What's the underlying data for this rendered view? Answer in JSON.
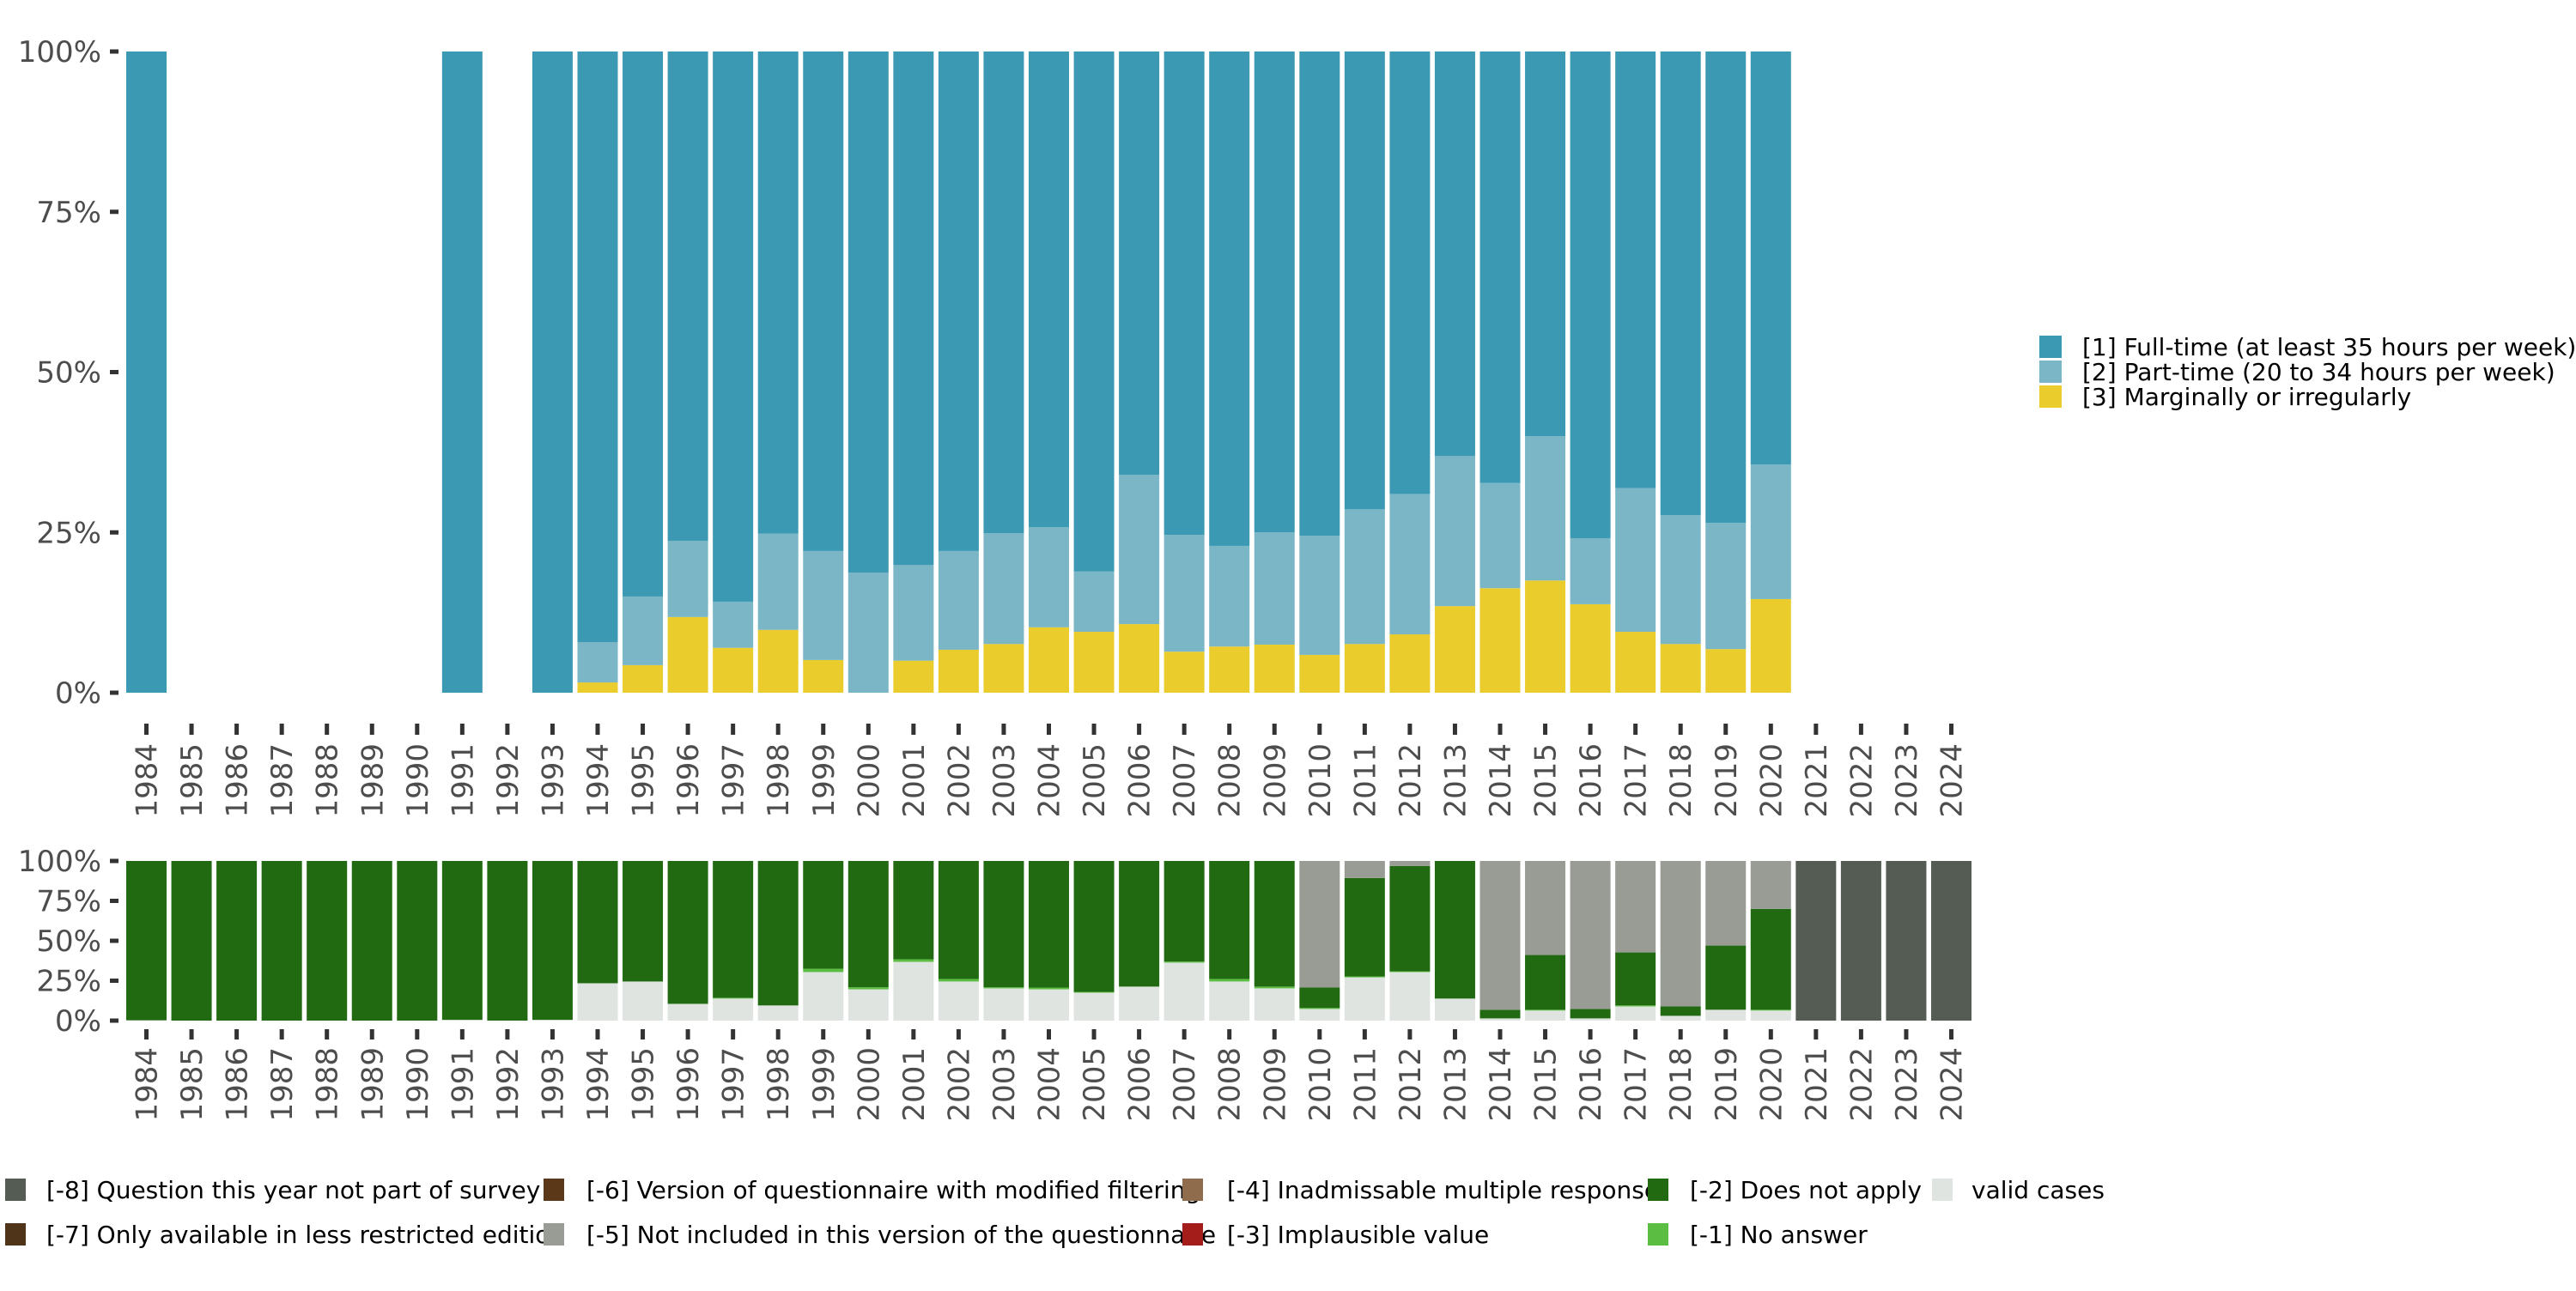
{
  "chart_data": [
    {
      "type": "bar",
      "stacked": true,
      "title": "",
      "xlabel": "",
      "ylabel": "",
      "ylim": [
        0,
        100
      ],
      "yticks": [
        "0%",
        "25%",
        "50%",
        "75%",
        "100%"
      ],
      "grid": false,
      "legend_position": "right",
      "categories": [
        "1984",
        "1985",
        "1986",
        "1987",
        "1988",
        "1989",
        "1990",
        "1991",
        "1992",
        "1993",
        "1994",
        "1995",
        "1996",
        "1997",
        "1998",
        "1999",
        "2000",
        "2001",
        "2002",
        "2003",
        "2004",
        "2005",
        "2006",
        "2007",
        "2008",
        "2009",
        "2010",
        "2011",
        "2012",
        "2013",
        "2014",
        "2015",
        "2016",
        "2017",
        "2018",
        "2019",
        "2020",
        "2021",
        "2022",
        "2023",
        "2024"
      ],
      "series": [
        {
          "name": "[3] Marginally or irregularly",
          "color": "#EACC2C",
          "values": [
            0,
            null,
            null,
            null,
            null,
            null,
            null,
            0,
            null,
            0,
            1.6,
            4.3,
            11.8,
            7.0,
            9.8,
            5.1,
            0,
            5.0,
            6.7,
            7.6,
            10.2,
            9.5,
            10.7,
            6.4,
            7.2,
            7.5,
            5.9,
            7.6,
            9.1,
            13.5,
            16.3,
            17.5,
            13.8,
            9.5,
            7.6,
            6.8,
            14.6,
            null,
            null,
            null,
            null
          ]
        },
        {
          "name": "[2] Part-time (20 to 34 hours per week)",
          "color": "#7AB6C5",
          "values": [
            0,
            null,
            null,
            null,
            null,
            null,
            null,
            0,
            null,
            0,
            6.3,
            10.7,
            11.9,
            7.2,
            15.0,
            17.0,
            18.7,
            14.9,
            15.4,
            17.3,
            15.6,
            9.4,
            23.3,
            18.2,
            15.7,
            17.5,
            18.6,
            21.0,
            21.9,
            23.4,
            16.4,
            22.5,
            10.3,
            22.4,
            20.1,
            19.7,
            21.0,
            null,
            null,
            null,
            null
          ]
        },
        {
          "name": "[1] Full-time (at least 35 hours per week)",
          "color": "#3C99B3",
          "values": [
            100,
            null,
            null,
            null,
            null,
            null,
            null,
            100,
            null,
            100,
            92.1,
            85.0,
            76.3,
            85.8,
            75.2,
            77.9,
            81.3,
            80.1,
            77.9,
            75.1,
            74.2,
            81.1,
            66.0,
            75.4,
            77.1,
            75.0,
            75.5,
            71.4,
            69.0,
            63.1,
            67.3,
            60.0,
            75.9,
            68.1,
            72.3,
            73.5,
            64.4,
            null,
            null,
            null,
            null
          ]
        }
      ]
    },
    {
      "type": "bar",
      "stacked": true,
      "title": "",
      "xlabel": "",
      "ylabel": "",
      "ylim": [
        0,
        100
      ],
      "yticks": [
        "0%",
        "25%",
        "50%",
        "75%",
        "100%"
      ],
      "grid": false,
      "legend_position": "bottom",
      "categories": [
        "1984",
        "1985",
        "1986",
        "1987",
        "1988",
        "1989",
        "1990",
        "1991",
        "1992",
        "1993",
        "1994",
        "1995",
        "1996",
        "1997",
        "1998",
        "1999",
        "2000",
        "2001",
        "2002",
        "2003",
        "2004",
        "2005",
        "2006",
        "2007",
        "2008",
        "2009",
        "2010",
        "2011",
        "2012",
        "2013",
        "2014",
        "2015",
        "2016",
        "2017",
        "2018",
        "2019",
        "2020",
        "2021",
        "2022",
        "2023",
        "2024"
      ],
      "series": [
        {
          "name": "valid cases",
          "color": "#E0E4E0",
          "values": [
            0.2,
            0,
            0,
            0,
            0,
            0,
            0,
            0.5,
            0,
            0.5,
            23.4,
            24.5,
            10.5,
            13.8,
            9.5,
            30.4,
            19.6,
            36.8,
            24.5,
            20.2,
            19.6,
            17.5,
            21.3,
            36.3,
            24.5,
            20.2,
            7.3,
            27.1,
            30.4,
            13.8,
            1.4,
            6.3,
            1.4,
            8.9,
            3.0,
            6.8,
            6.3,
            0,
            0,
            0,
            0
          ]
        },
        {
          "name": "[-1] No answer",
          "color": "#5BBE43",
          "values": [
            0,
            0,
            0,
            0,
            0,
            0,
            0,
            0,
            0,
            0,
            0,
            0,
            0,
            0.5,
            0,
            2.1,
            1.3,
            1.6,
            1.6,
            0.7,
            1.1,
            0.5,
            0,
            0.7,
            1.6,
            1.1,
            0.6,
            0.6,
            0.5,
            0,
            0,
            0.5,
            0,
            0.6,
            0,
            0,
            0.5,
            0,
            0,
            0,
            0
          ]
        },
        {
          "name": "[-2] Does not apply",
          "color": "#216A11",
          "values": [
            99.8,
            100,
            100,
            100,
            100,
            100,
            100,
            99.5,
            100,
            99.5,
            76.6,
            75.5,
            89.5,
            85.7,
            90.5,
            67.5,
            79.1,
            61.6,
            73.9,
            79.1,
            79.3,
            82.0,
            78.7,
            63.0,
            73.9,
            78.7,
            12.8,
            61.6,
            65.9,
            86.2,
            5.4,
            34.3,
            5.9,
            33.2,
            5.9,
            40.2,
            63.2,
            0,
            0,
            0,
            0
          ]
        },
        {
          "name": "[-5] Not included in this version of the questionnaire",
          "color": "#989C94",
          "values": [
            0,
            0,
            0,
            0,
            0,
            0,
            0,
            0,
            0,
            0,
            0,
            0,
            0,
            0,
            0,
            0,
            0,
            0,
            0,
            0,
            0,
            0,
            0,
            0,
            0,
            0,
            79.3,
            10.7,
            3.2,
            0,
            93.2,
            58.9,
            92.7,
            57.3,
            91.1,
            53.0,
            30.0,
            0,
            0,
            0,
            0
          ]
        },
        {
          "name": "[-8] Question this year not part of survey",
          "color": "#545C54",
          "values": [
            0,
            0,
            0,
            0,
            0,
            0,
            0,
            0,
            0,
            0,
            0,
            0,
            0,
            0,
            0,
            0,
            0,
            0,
            0,
            0,
            0,
            0,
            0,
            0,
            0,
            0,
            0,
            0,
            0,
            0,
            0,
            0,
            0,
            0,
            0,
            0,
            0,
            100,
            100,
            100,
            100
          ]
        }
      ]
    }
  ],
  "top_legend": {
    "items": [
      {
        "label": "[1] Full-time (at least 35 hours per week)",
        "color": "#3C99B3"
      },
      {
        "label": "[2] Part-time (20 to 34 hours per week)",
        "color": "#7AB6C5"
      },
      {
        "label": "[3] Marginally or irregularly",
        "color": "#EACC2C"
      }
    ]
  },
  "bottom_legend": {
    "items": [
      {
        "label": "[-8] Question this year not part of survey",
        "color": "#545C54"
      },
      {
        "label": "[-7] Only available in less restricted edition",
        "color": "#4F341A"
      },
      {
        "label": "[-6] Version of questionnaire with modified filtering",
        "color": "#5A3818"
      },
      {
        "label": "[-5] Not included in this version of the questionnaire",
        "color": "#989C94"
      },
      {
        "label": "[-4] Inadmissable multiple response",
        "color": "#8F6C4B"
      },
      {
        "label": "[-3] Implausible value",
        "color": "#A51D1A"
      },
      {
        "label": "[-2] Does not apply",
        "color": "#216A11"
      },
      {
        "label": "[-1] No answer",
        "color": "#5BBE43"
      },
      {
        "label": "valid cases",
        "color": "#E0E4E0"
      }
    ]
  }
}
